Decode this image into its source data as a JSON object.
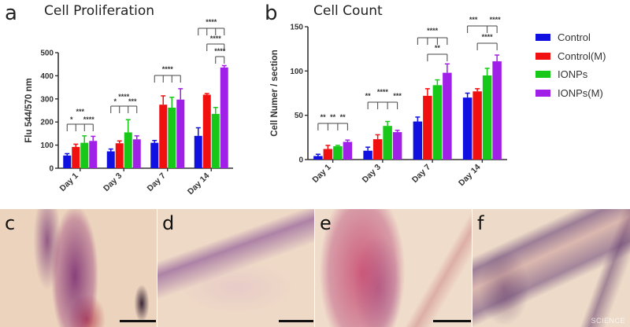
{
  "panels": {
    "a": {
      "letter": "a",
      "title": "Cell Proliferation"
    },
    "b": {
      "letter": "b",
      "title": "Cell Count"
    }
  },
  "legend": [
    {
      "label": "Control",
      "color": "#1010e0"
    },
    {
      "label": "Control(M)",
      "color": "#f01010"
    },
    {
      "label": "IONPs",
      "color": "#18c818"
    },
    {
      "label": "IONPs(M)",
      "color": "#a020e8"
    }
  ],
  "chart_data": [
    {
      "type": "bar",
      "title": "Cell Proliferation",
      "xlabel": "",
      "ylabel": "Flu 544/570 nm",
      "ylim": [
        0,
        500
      ],
      "yticks": [
        0,
        100,
        200,
        300,
        400,
        500
      ],
      "categories": [
        "Day 1",
        "Day 3",
        "Day 7",
        "Day 14"
      ],
      "series": [
        {
          "name": "Control",
          "values": [
            55,
            73,
            110,
            140
          ],
          "errors": [
            8,
            10,
            10,
            35
          ]
        },
        {
          "name": "Control(M)",
          "values": [
            92,
            108,
            275,
            318
          ],
          "errors": [
            12,
            10,
            38,
            5
          ]
        },
        {
          "name": "IONPs",
          "values": [
            110,
            155,
            262,
            235
          ],
          "errors": [
            30,
            55,
            45,
            28
          ]
        },
        {
          "name": "IONPs(M)",
          "values": [
            118,
            125,
            297,
            436
          ],
          "errors": [
            20,
            15,
            47,
            8
          ]
        }
      ],
      "significance": [
        {
          "group": "Day 1",
          "labels": [
            "***",
            "*",
            "****"
          ]
        },
        {
          "group": "Day 3",
          "labels": [
            "****",
            "*",
            "***"
          ]
        },
        {
          "group": "Day 7",
          "labels": [
            "****"
          ]
        },
        {
          "group": "Day 14",
          "labels": [
            "****",
            "****",
            "****"
          ]
        }
      ],
      "grid": false,
      "legend_position": "right"
    },
    {
      "type": "bar",
      "title": "Cell Count",
      "xlabel": "",
      "ylabel": "Cell Numer / section",
      "ylim": [
        0,
        150
      ],
      "yticks": [
        0,
        50,
        100,
        150
      ],
      "categories": [
        "Day 1",
        "Day 3",
        "Day 7",
        "Day 14"
      ],
      "series": [
        {
          "name": "Control",
          "values": [
            4,
            10,
            43,
            70
          ],
          "errors": [
            2,
            4,
            5,
            5
          ]
        },
        {
          "name": "Control(M)",
          "values": [
            12,
            23,
            72,
            77
          ],
          "errors": [
            4,
            5,
            8,
            3
          ]
        },
        {
          "name": "IONPs",
          "values": [
            15,
            38,
            84,
            95
          ],
          "errors": [
            1,
            5,
            6,
            8
          ]
        },
        {
          "name": "IONPs(M)",
          "values": [
            20,
            31,
            98,
            111
          ],
          "errors": [
            2,
            2,
            10,
            7
          ]
        }
      ],
      "significance": [
        {
          "group": "Day 1",
          "labels": [
            "**",
            "**",
            "**"
          ]
        },
        {
          "group": "Day 3",
          "labels": [
            "**",
            "****",
            "***"
          ]
        },
        {
          "group": "Day 7",
          "labels": [
            "****",
            "**"
          ]
        },
        {
          "group": "Day 14",
          "labels": [
            "***",
            "****",
            "****"
          ]
        }
      ],
      "grid": false,
      "legend_position": "right"
    }
  ],
  "photos": [
    {
      "label": "c"
    },
    {
      "label": "d"
    },
    {
      "label": "e"
    },
    {
      "label": "f",
      "watermark": "SCIENCE"
    }
  ]
}
